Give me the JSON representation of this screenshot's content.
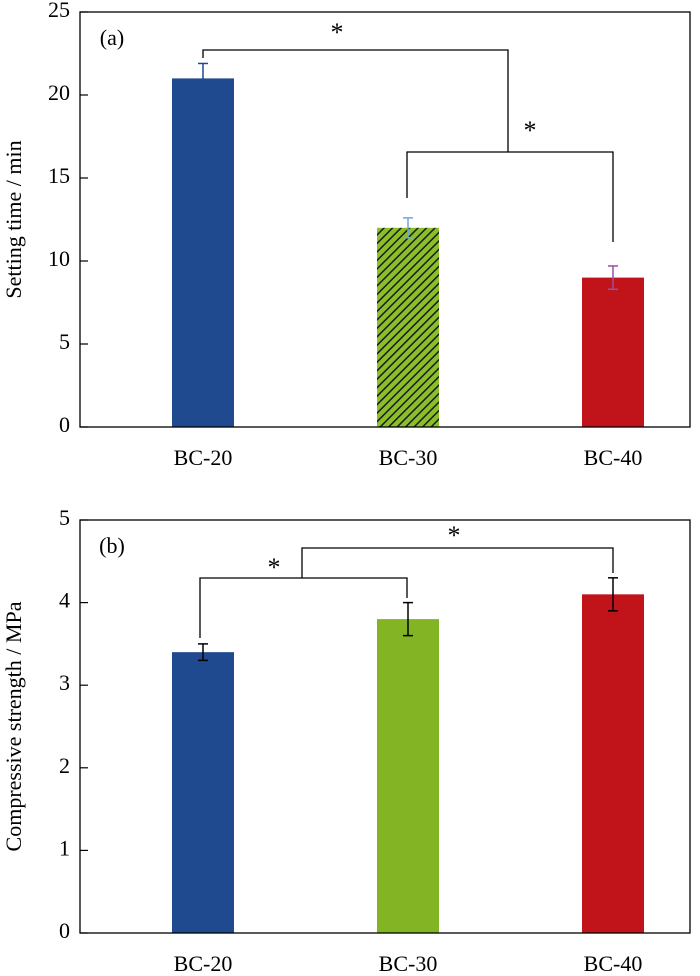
{
  "chart_data": [
    {
      "type": "bar",
      "panel_label": "(a)",
      "y_label": "Setting time / min",
      "categories": [
        "BC-20",
        "BC-30",
        "BC-40"
      ],
      "values": [
        21,
        12,
        9
      ],
      "errors": [
        0.9,
        0.6,
        0.7
      ],
      "colors": [
        "#1f4a8f",
        "#8bbf2a",
        "#c0141a"
      ],
      "hatch": [
        false,
        true,
        false
      ],
      "error_colors": [
        "#1f4a8f",
        "#6fa8dc",
        "#9b4f9b"
      ],
      "ylim": [
        0,
        25
      ],
      "yticks": [
        0,
        5,
        10,
        15,
        20,
        25
      ],
      "annotations": [
        {
          "text": "*"
        },
        {
          "text": "*"
        }
      ]
    },
    {
      "type": "bar",
      "panel_label": "(b)",
      "y_label": "Compressive strength / MPa",
      "categories": [
        "BC-20",
        "BC-30",
        "BC-40"
      ],
      "values": [
        3.4,
        3.8,
        4.1
      ],
      "errors": [
        0.1,
        0.2,
        0.2
      ],
      "colors": [
        "#1f4a8f",
        "#82b424",
        "#c0141a"
      ],
      "hatch": [
        false,
        false,
        false
      ],
      "error_colors": [
        "#000000",
        "#000000",
        "#000000"
      ],
      "ylim": [
        0,
        5
      ],
      "yticks": [
        0,
        1,
        2,
        3,
        4,
        5
      ],
      "annotations": [
        {
          "text": "*"
        },
        {
          "text": "*"
        }
      ]
    }
  ]
}
